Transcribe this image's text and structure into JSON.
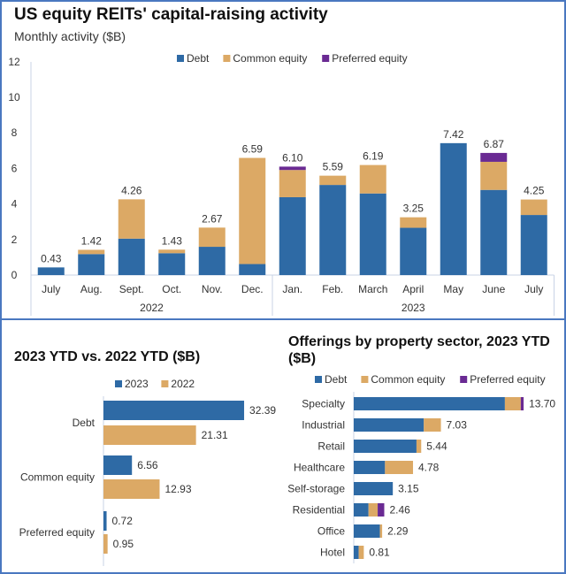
{
  "colors": {
    "debt": "#2e6aa5",
    "common": "#dca965",
    "preferred": "#6a2a93",
    "frame": "#4a78c0"
  },
  "chart_data": [
    {
      "type": "bar",
      "stacked": true,
      "title": "US equity REITs' capital-raising activity",
      "subtitle": "Monthly activity ($B)",
      "categories": [
        "July",
        "Aug.",
        "Sept.",
        "Oct.",
        "Nov.",
        "Dec.",
        "Jan.",
        "Feb.",
        "March",
        "April",
        "May",
        "June",
        "July"
      ],
      "groups": [
        {
          "label": "2022",
          "count": 6
        },
        {
          "label": "2023",
          "count": 7
        }
      ],
      "ylim": [
        0,
        12
      ],
      "yticks": [
        0,
        2,
        4,
        6,
        8,
        10,
        12
      ],
      "legend": "top",
      "series": [
        {
          "name": "Debt",
          "values": [
            0.43,
            1.18,
            2.05,
            1.23,
            1.59,
            0.62,
            4.38,
            5.07,
            4.59,
            2.66,
            7.42,
            4.79,
            3.38
          ]
        },
        {
          "name": "Common equity",
          "values": [
            0,
            0.24,
            2.21,
            0.2,
            1.08,
            5.97,
            1.53,
            0.52,
            1.6,
            0.59,
            0,
            1.58,
            0.87
          ]
        },
        {
          "name": "Preferred equity",
          "values": [
            0,
            0,
            0,
            0,
            0,
            0,
            0.19,
            0,
            0,
            0,
            0,
            0.5,
            0
          ]
        }
      ],
      "totals": [
        "0.43",
        "1.42",
        "4.26",
        "1.43",
        "2.67",
        "6.59",
        "6.10",
        "5.59",
        "6.19",
        "3.25",
        "7.42",
        "6.87",
        "4.25"
      ]
    },
    {
      "type": "bar",
      "orientation": "horizontal",
      "title": "2023 YTD vs. 2022 YTD ($B)",
      "legend": "top",
      "categories": [
        "Debt",
        "Common equity",
        "Preferred equity"
      ],
      "series": [
        {
          "name": "2023",
          "values": [
            32.39,
            6.56,
            0.72
          ]
        },
        {
          "name": "2022",
          "values": [
            21.31,
            12.93,
            0.95
          ]
        }
      ],
      "labels": [
        [
          "32.39",
          "6.56",
          "0.72"
        ],
        [
          "21.31",
          "12.93",
          "0.95"
        ]
      ]
    },
    {
      "type": "bar",
      "orientation": "horizontal",
      "stacked": true,
      "title": "Offerings by property sector, 2023 YTD ($B)",
      "legend": "top",
      "categories": [
        "Specialty",
        "Industrial",
        "Retail",
        "Healthcare",
        "Self-storage",
        "Residential",
        "Office",
        "Hotel"
      ],
      "series": [
        {
          "name": "Debt",
          "values": [
            12.19,
            5.65,
            5.06,
            2.52,
            3.15,
            1.19,
            2.11,
            0.4
          ]
        },
        {
          "name": "Common equity",
          "values": [
            1.28,
            1.38,
            0.38,
            2.26,
            0,
            0.74,
            0.18,
            0.41
          ]
        },
        {
          "name": "Preferred equity",
          "values": [
            0.23,
            0,
            0,
            0,
            0,
            0.53,
            0,
            0
          ]
        }
      ],
      "totals": [
        "13.70",
        "7.03",
        "5.44",
        "4.78",
        "3.15",
        "2.46",
        "2.29",
        "0.81"
      ]
    }
  ]
}
